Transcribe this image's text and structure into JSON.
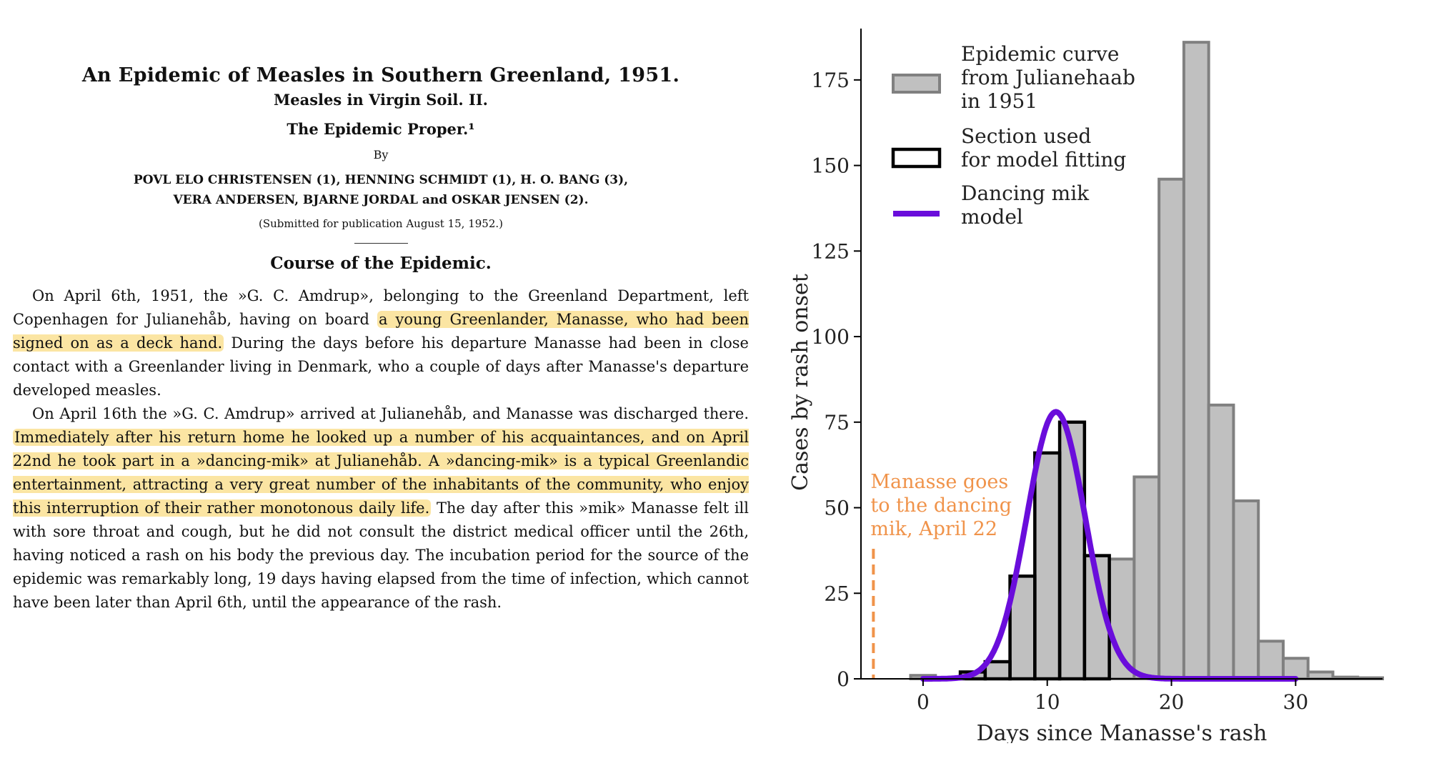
{
  "paper": {
    "title": "An Epidemic of Measles in Southern Greenland, 1951.",
    "subtitle": "Measles in Virgin Soil. II.",
    "subtitle2": "The Epidemic Proper.¹",
    "by": "By",
    "authors_line1": "POVL ELO CHRISTENSEN (1), HENNING SCHMIDT (1), H. O. BANG (3),",
    "authors_line2": "VERA ANDERSEN, BJARNE JORDAL and OSKAR JENSEN (2).",
    "submitted": "(Submitted for publication August 15, 1952.)",
    "section": "Course of the Epidemic.",
    "p1": {
      "a": "On April 6th, 1951, the »G. C. Amdrup», belonging to the Greenland Department, left Copenhagen for Julianehåb, having on board ",
      "hl": "a young Greenlander, Manasse, who had been signed on as a deck hand.",
      "b": " During the days before his departure Manasse had been in close contact with a Greenlander living in Denmark, who a couple of days after Manasse's departure developed measles."
    },
    "p2": {
      "a": "On April 16th the »G. C. Amdrup» arrived at Julianehåb, and Manasse was discharged there. ",
      "hl": "Immediately after his return home he looked up a number of his acquaintances, and on April 22nd he took part in a »dancing-mik» at Julianehåb. A »dancing-mik» is a typical Greenlandic entertainment, attracting a very great number of the inhabitants of the community, who enjoy this interruption of their rather monotonous daily life.",
      "b": " The day after this »mik» Manasse felt ill with sore throat and cough, but he did not consult the district medical officer until the 26th, having noticed a rash on his body the previous day. The incubation period for the source of the epidemic was remarkably long, 19 days having elapsed from the time of infection, which cannot have been later than April 6th, until the appearance of the rash."
    }
  },
  "chart_data": {
    "type": "bar",
    "xlabel": "Days since Manasse's rash",
    "ylabel": "Cases by rash onset",
    "xlim": [
      -5,
      37
    ],
    "ylim": [
      0,
      190
    ],
    "xticks": [
      0,
      10,
      20,
      30
    ],
    "yticks": [
      0,
      25,
      50,
      75,
      100,
      125,
      150,
      175
    ],
    "bin_width": 2,
    "bins_start": [
      -1,
      1,
      3,
      5,
      7,
      9,
      11,
      13,
      15,
      17,
      19,
      21,
      23,
      25,
      27,
      29,
      31,
      33,
      35
    ],
    "epidemic_counts": [
      1,
      0,
      2,
      5,
      30,
      66,
      75,
      36,
      35,
      59,
      146,
      186,
      80,
      52,
      11,
      6,
      2,
      0.5,
      0.3
    ],
    "fitting_section_counts": [
      0,
      0,
      2,
      5,
      30,
      66,
      75,
      36,
      0,
      0,
      0,
      0,
      0,
      0,
      0,
      0,
      0,
      0,
      0
    ],
    "model": {
      "peak_x": 10.7,
      "peak_y": 78,
      "sd": 2.35,
      "x_range": [
        0,
        30
      ]
    },
    "legend": {
      "position": "top-right",
      "entries": [
        {
          "label_line1": "Epidemic curve",
          "label_line2": "from Julianehaab",
          "label_line3": "in 1951"
        },
        {
          "label_line1": "Section used",
          "label_line2": "for model fitting",
          "label_line3": ""
        },
        {
          "label_line1": "Dancing mik",
          "label_line2": "model",
          "label_line3": ""
        }
      ]
    },
    "annotation": {
      "line1": "Manasse goes",
      "line2": "to the dancing",
      "line3": "mik, April 22",
      "x": -4,
      "y_top": 38
    },
    "colors": {
      "gray_fill": "#c0c0c0",
      "gray_edge": "#808080",
      "fit_edge": "#000000",
      "model": "#6a0ddb",
      "annotation": "#f0934a"
    }
  }
}
